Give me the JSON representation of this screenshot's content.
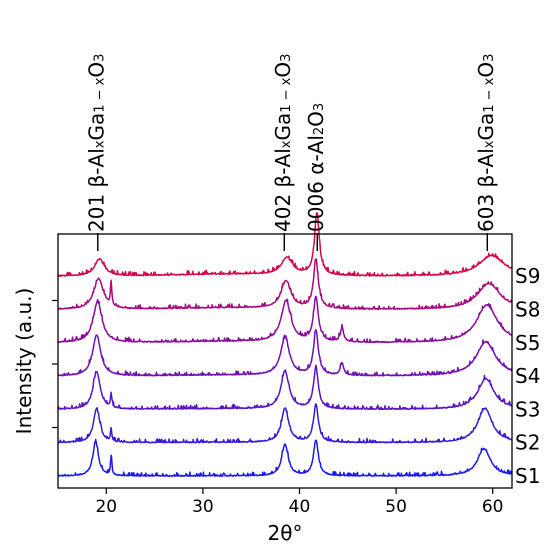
{
  "chart_data": {
    "type": "line",
    "xlabel": "2θ°",
    "ylabel": "Intensity (a.u.)",
    "xlim": [
      15,
      62
    ],
    "xticks": [
      20,
      30,
      40,
      50,
      60
    ],
    "yticks_labeled": false,
    "grid": false,
    "legend": "none",
    "x_range": [
      15,
      62
    ],
    "peaks_deg": [
      19.0,
      20.5,
      38.5,
      41.7,
      44.4,
      59.2
    ],
    "annotations": [
      {
        "x": 19.0,
        "prefix": "201 ",
        "text": "β-Al",
        "sub1": "x",
        "mid": "Ga",
        "sub2": "1 − x",
        "suffix": "O",
        "sub3": "3"
      },
      {
        "x": 38.3,
        "prefix": "402 ",
        "text": "β-Al",
        "sub1": "x",
        "mid": "Ga",
        "sub2": "1 − x",
        "suffix": "O",
        "sub3": "3"
      },
      {
        "x": 41.7,
        "prefix": "0006 ",
        "text": "α-Al",
        "sub1": "2",
        "mid": "O",
        "sub2": "3",
        "suffix": "",
        "sub3": ""
      },
      {
        "x": 59.3,
        "prefix": "603 ",
        "text": "β-Al",
        "sub1": "x",
        "mid": "Ga",
        "sub2": "1 − x",
        "suffix": "O",
        "sub3": "3"
      }
    ],
    "series": [
      {
        "name": "S1",
        "color": "#1a1aee",
        "offset": 0,
        "peaks": [
          [
            18.9,
            0.5,
            0.35
          ],
          [
            20.5,
            0.28,
            0.08
          ],
          [
            38.5,
            0.46,
            0.4
          ],
          [
            41.7,
            0.52,
            0.3
          ],
          [
            59.1,
            0.4,
            0.8
          ]
        ]
      },
      {
        "name": "S2",
        "color": "#3b18d8",
        "offset": 1,
        "peaks": [
          [
            19.0,
            0.5,
            0.4
          ],
          [
            20.5,
            0.18,
            0.08
          ],
          [
            38.5,
            0.5,
            0.45
          ],
          [
            41.7,
            0.55,
            0.3
          ],
          [
            59.2,
            0.5,
            0.9
          ]
        ]
      },
      {
        "name": "S3",
        "color": "#5a14c4",
        "offset": 2,
        "peaks": [
          [
            19.0,
            0.55,
            0.45
          ],
          [
            20.5,
            0.2,
            0.08
          ],
          [
            38.5,
            0.55,
            0.5
          ],
          [
            41.7,
            0.6,
            0.3
          ],
          [
            59.3,
            0.45,
            1.0
          ]
        ]
      },
      {
        "name": "S4",
        "color": "#7110b0",
        "offset": 3,
        "peaks": [
          [
            19.0,
            0.6,
            0.5
          ],
          [
            38.5,
            0.55,
            0.55
          ],
          [
            41.7,
            0.65,
            0.3
          ],
          [
            44.4,
            0.18,
            0.2
          ],
          [
            59.3,
            0.5,
            1.2
          ]
        ]
      },
      {
        "name": "S5",
        "color": "#8a0c99",
        "offset": 4,
        "peaks": [
          [
            19.1,
            0.6,
            0.55
          ],
          [
            38.6,
            0.6,
            0.6
          ],
          [
            41.7,
            0.65,
            0.3
          ],
          [
            44.4,
            0.2,
            0.2
          ],
          [
            59.4,
            0.55,
            1.3
          ]
        ]
      },
      {
        "name": "S8",
        "color": "#a80a7d",
        "offset": 5,
        "peaks": [
          [
            19.2,
            0.45,
            0.6
          ],
          [
            20.5,
            0.35,
            0.08
          ],
          [
            38.6,
            0.4,
            0.6
          ],
          [
            41.7,
            0.7,
            0.3
          ],
          [
            59.6,
            0.38,
            1.4
          ]
        ]
      },
      {
        "name": "S9",
        "color": "#d6064c",
        "offset": 6,
        "peaks": [
          [
            19.3,
            0.25,
            0.6
          ],
          [
            38.7,
            0.25,
            0.7
          ],
          [
            41.8,
            0.9,
            0.3
          ],
          [
            59.9,
            0.3,
            1.6
          ]
        ]
      }
    ]
  }
}
